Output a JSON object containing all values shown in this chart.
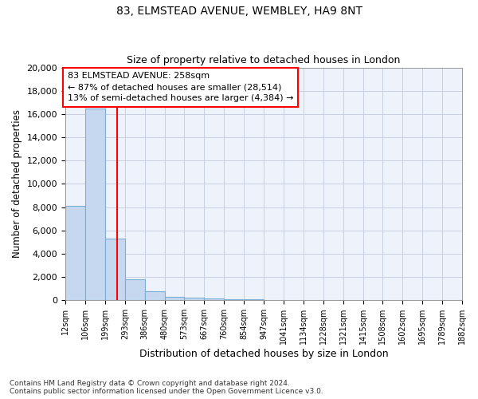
{
  "title": "83, ELMSTEAD AVENUE, WEMBLEY, HA9 8NT",
  "subtitle": "Size of property relative to detached houses in London",
  "xlabel": "Distribution of detached houses by size in London",
  "ylabel": "Number of detached properties",
  "bar_color": "#c5d8f0",
  "bar_edge_color": "#7aaed4",
  "background_color": "#eef2fa",
  "grid_color": "#c8cfe0",
  "vline_x": 258,
  "vline_color": "red",
  "annotation_text": "83 ELMSTEAD AVENUE: 258sqm\n← 87% of detached houses are smaller (28,514)\n13% of semi-detached houses are larger (4,384) →",
  "footnote": "Contains HM Land Registry data © Crown copyright and database right 2024.\nContains public sector information licensed under the Open Government Licence v3.0.",
  "bin_edges": [
    12,
    106,
    199,
    293,
    386,
    480,
    573,
    667,
    760,
    854,
    947,
    1041,
    1134,
    1228,
    1321,
    1415,
    1508,
    1602,
    1695,
    1789,
    1882
  ],
  "bar_heights": [
    8100,
    16500,
    5300,
    1800,
    800,
    300,
    200,
    150,
    100,
    50,
    30,
    20,
    15,
    10,
    8,
    5,
    4,
    3,
    2,
    1
  ],
  "ylim": [
    0,
    20000
  ],
  "yticks": [
    0,
    2000,
    4000,
    6000,
    8000,
    10000,
    12000,
    14000,
    16000,
    18000,
    20000
  ]
}
